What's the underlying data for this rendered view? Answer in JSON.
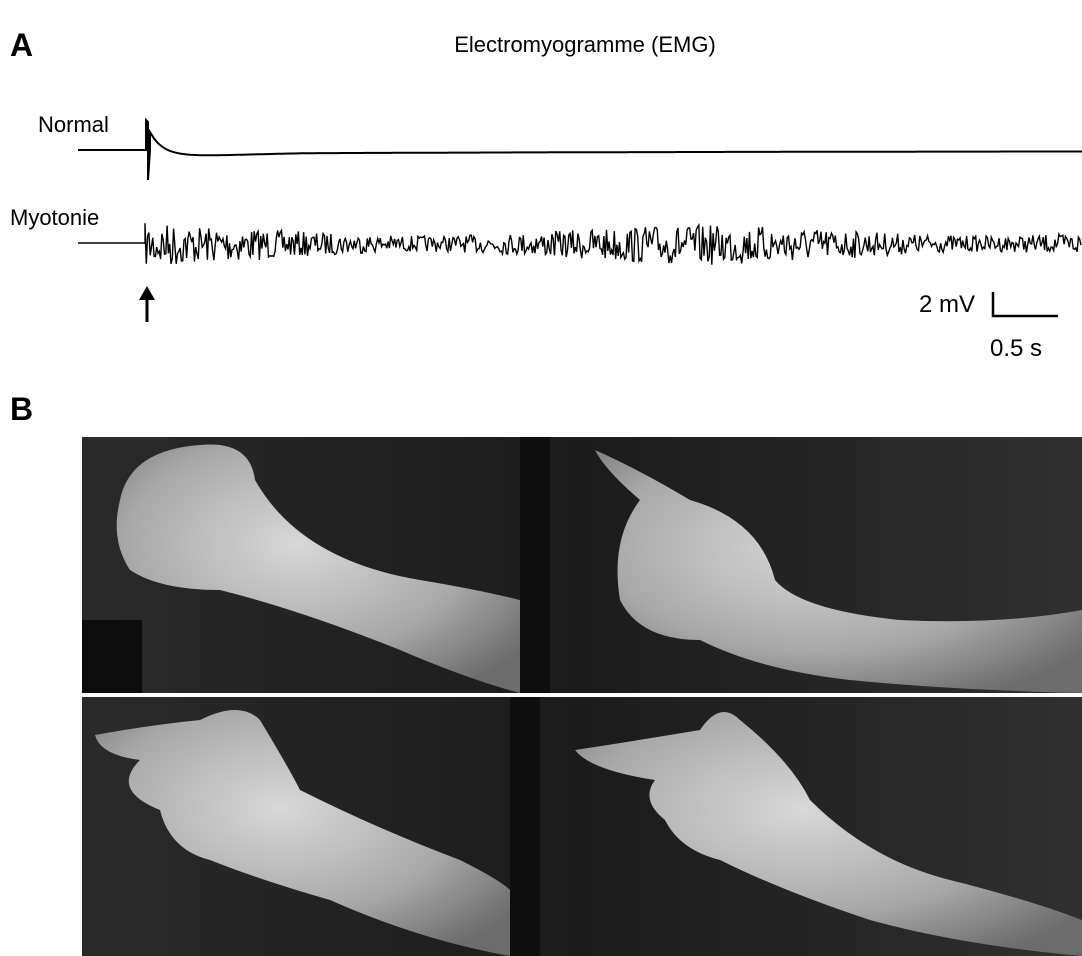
{
  "panels": [
    {
      "label": "A",
      "title": "Electromyogramme (EMG)",
      "traces": [
        "Normal",
        "Myotonie"
      ],
      "scale_bar": {
        "vertical": "2 mV",
        "horizontal": "0.5 s"
      }
    },
    {
      "label": "B"
    }
  ]
}
